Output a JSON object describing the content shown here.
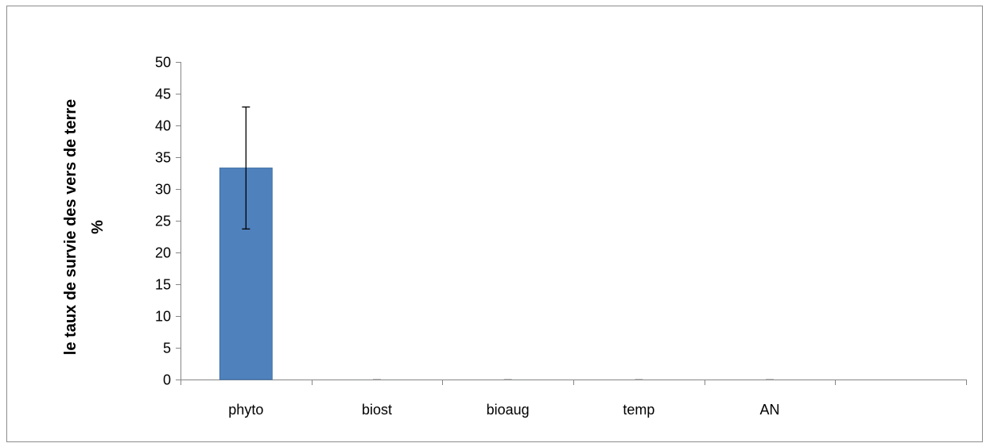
{
  "chart_data": {
    "type": "bar",
    "categories": [
      "phyto",
      "biost",
      "bioaug",
      "temp",
      "AN",
      ""
    ],
    "values": [
      33.3,
      0,
      0,
      0,
      0,
      null
    ],
    "error_bars": [
      9.6,
      0,
      0,
      0,
      0,
      null
    ],
    "title": "",
    "xlabel": "",
    "ylabel_lines": [
      "le taux de survie des vers de terre",
      "%"
    ],
    "ylim": [
      0,
      50
    ],
    "ytick_step": 5,
    "grid": false,
    "legend": "none",
    "colors": {
      "bar": "#4f81bd",
      "bar_edge": "#3f6fa6",
      "axis": "#868686",
      "error_bar": "#000000"
    }
  }
}
